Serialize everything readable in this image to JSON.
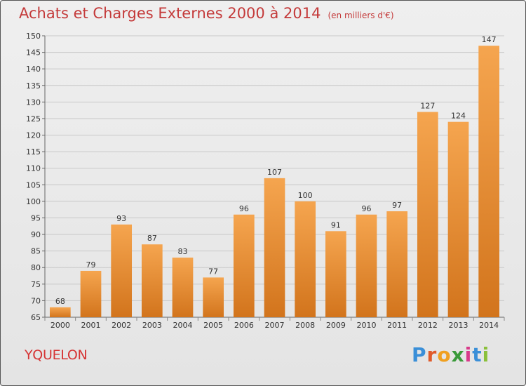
{
  "header": {
    "title": "Achats et Charges Externes 2000 à 2014",
    "unit": "(en milliers d'€)"
  },
  "footer": {
    "commune": "YQUELON",
    "logo_text": "Proxiti"
  },
  "colors": {
    "bar_light": "#f5a54f",
    "bar_dark": "#d2741c",
    "title": "#c43a3a",
    "commune": "#d63434"
  },
  "chart_data": {
    "type": "bar",
    "title": "Achats et Charges Externes 2000 à 2014",
    "subtitle": "(en milliers d'€)",
    "xlabel": "",
    "ylabel": "",
    "categories": [
      "2000",
      "2001",
      "2002",
      "2003",
      "2004",
      "2005",
      "2006",
      "2007",
      "2008",
      "2009",
      "2010",
      "2011",
      "2012",
      "2013",
      "2014"
    ],
    "values": [
      68,
      79,
      93,
      87,
      83,
      77,
      96,
      107,
      100,
      91,
      96,
      97,
      127,
      124,
      147
    ],
    "ylim": [
      65,
      150
    ],
    "yticks": [
      65,
      70,
      75,
      80,
      85,
      90,
      95,
      100,
      105,
      110,
      115,
      120,
      125,
      130,
      135,
      140,
      145,
      150
    ],
    "grid": true,
    "legend": "none"
  }
}
